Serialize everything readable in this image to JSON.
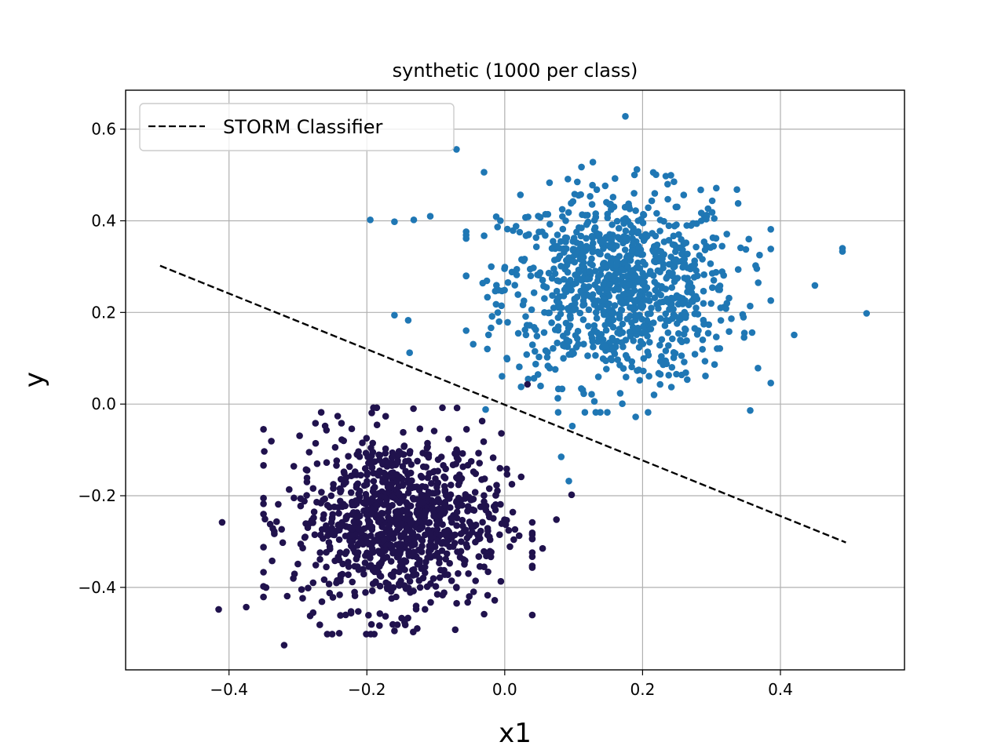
{
  "chart_data": {
    "type": "scatter",
    "title": "synthetic (1000 per class)",
    "xlabel": "x1",
    "ylabel": "y",
    "xlim": [
      -0.55,
      0.58
    ],
    "ylim": [
      -0.58,
      0.685
    ],
    "grid": true,
    "legend_position": "top-left",
    "x_ticks": [
      -0.4,
      -0.2,
      0.0,
      0.2,
      0.4
    ],
    "x_tick_labels": [
      "−0.4",
      "−0.2",
      "0.0",
      "0.2",
      "0.4"
    ],
    "y_ticks": [
      -0.4,
      -0.2,
      0.0,
      0.2,
      0.4,
      0.6
    ],
    "y_tick_labels": [
      "−0.4",
      "−0.2",
      "0.0",
      "0.2",
      "0.4",
      "0.6"
    ],
    "line": {
      "name": "STORM Classifier",
      "style": "dashed",
      "color": "#000000",
      "x": [
        -0.5,
        0.495
      ],
      "y": [
        0.302,
        -0.302
      ]
    },
    "point_series": [
      {
        "color": "#1f77b4",
        "count": 1000,
        "center": [
          0.165,
          0.255
        ],
        "spread": [
          0.085,
          0.105
        ]
      },
      {
        "color": "#20124d",
        "count": 1000,
        "center": [
          -0.155,
          -0.255
        ],
        "spread": [
          0.075,
          0.095
        ]
      }
    ],
    "outliers": [
      {
        "series": 0,
        "x": 0.175,
        "y": 0.628
      },
      {
        "series": 0,
        "x": -0.07,
        "y": 0.556
      },
      {
        "series": 0,
        "x": -0.03,
        "y": 0.506
      },
      {
        "series": 0,
        "x": -0.195,
        "y": 0.402
      },
      {
        "series": 0,
        "x": -0.16,
        "y": 0.398
      },
      {
        "series": 0,
        "x": -0.132,
        "y": 0.402
      },
      {
        "series": 0,
        "x": -0.108,
        "y": 0.41
      },
      {
        "series": 0,
        "x": -0.16,
        "y": 0.194
      },
      {
        "series": 0,
        "x": -0.14,
        "y": 0.183
      },
      {
        "series": 0,
        "x": -0.138,
        "y": 0.112
      },
      {
        "series": 0,
        "x": 0.525,
        "y": 0.198
      },
      {
        "series": 0,
        "x": 0.49,
        "y": 0.34
      },
      {
        "series": 0,
        "x": 0.49,
        "y": 0.333
      },
      {
        "series": 0,
        "x": 0.45,
        "y": 0.259
      },
      {
        "series": 0,
        "x": 0.42,
        "y": 0.151
      },
      {
        "series": 0,
        "x": 0.13,
        "y": 0.006
      },
      {
        "series": 0,
        "x": 0.19,
        "y": -0.028
      },
      {
        "series": 0,
        "x": 0.098,
        "y": -0.048
      },
      {
        "series": 0,
        "x": 0.082,
        "y": -0.115
      },
      {
        "series": 0,
        "x": 0.093,
        "y": -0.168
      },
      {
        "series": 1,
        "x": 0.033,
        "y": 0.043
      },
      {
        "series": 1,
        "x": -0.415,
        "y": -0.448
      },
      {
        "series": 1,
        "x": -0.32,
        "y": -0.526
      },
      {
        "series": 1,
        "x": -0.375,
        "y": -0.443
      },
      {
        "series": 1,
        "x": -0.41,
        "y": -0.258
      },
      {
        "series": 1,
        "x": 0.097,
        "y": -0.198
      },
      {
        "series": 1,
        "x": 0.075,
        "y": -0.252
      },
      {
        "series": 1,
        "x": 0.055,
        "y": -0.315
      },
      {
        "series": 1,
        "x": -0.24,
        "y": -0.5
      },
      {
        "series": 1,
        "x": -0.16,
        "y": -0.495
      }
    ]
  }
}
